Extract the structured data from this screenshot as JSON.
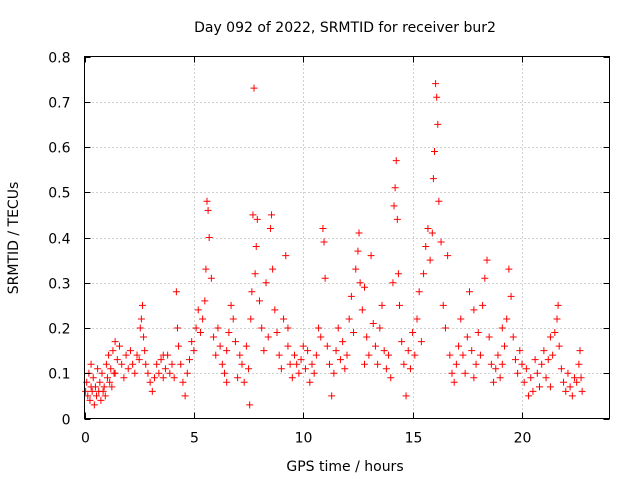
{
  "chart_data": {
    "type": "scatter",
    "title": "Day 092 of 2022, SRMTID for receiver bur2",
    "xlabel": "GPS time / hours",
    "ylabel": "SRMTID / TECUs",
    "xlim": [
      0,
      24
    ],
    "ylim": [
      0,
      0.8
    ],
    "xticks": [
      0,
      5,
      10,
      15,
      20
    ],
    "yticks": [
      0,
      0.1,
      0.2,
      0.3,
      0.4,
      0.5,
      0.6,
      0.7,
      0.8
    ],
    "xtick_labels": [
      "0",
      "5",
      "10",
      "15",
      "20"
    ],
    "ytick_labels": [
      "0",
      "0.1",
      "0.2",
      "0.3",
      "0.4",
      "0.5",
      "0.6",
      "0.7",
      "0.8"
    ],
    "grid": true,
    "marker": "+",
    "color": "#ff0000",
    "series": [
      {
        "name": "SRMTID",
        "points": [
          [
            0.05,
            0.06
          ],
          [
            0.1,
            0.08
          ],
          [
            0.15,
            0.05
          ],
          [
            0.2,
            0.1
          ],
          [
            0.25,
            0.04
          ],
          [
            0.3,
            0.07
          ],
          [
            0.35,
            0.06
          ],
          [
            0.4,
            0.09
          ],
          [
            0.45,
            0.03
          ],
          [
            0.5,
            0.07
          ],
          [
            0.55,
            0.05
          ],
          [
            0.6,
            0.11
          ],
          [
            0.65,
            0.06
          ],
          [
            0.7,
            0.08
          ],
          [
            0.75,
            0.04
          ],
          [
            0.8,
            0.1
          ],
          [
            0.85,
            0.06
          ],
          [
            0.9,
            0.07
          ],
          [
            0.95,
            0.05
          ],
          [
            1.0,
            0.12
          ],
          [
            1.05,
            0.09
          ],
          [
            1.1,
            0.14
          ],
          [
            1.15,
            0.08
          ],
          [
            1.2,
            0.11
          ],
          [
            1.25,
            0.07
          ],
          [
            1.3,
            0.15
          ],
          [
            1.35,
            0.1
          ],
          [
            1.4,
            0.17
          ],
          [
            1.5,
            0.13
          ],
          [
            1.6,
            0.16
          ],
          [
            1.7,
            0.12
          ],
          [
            1.8,
            0.09
          ],
          [
            1.9,
            0.14
          ],
          [
            2.0,
            0.11
          ],
          [
            2.1,
            0.15
          ],
          [
            2.2,
            0.12
          ],
          [
            2.3,
            0.1
          ],
          [
            2.4,
            0.14
          ],
          [
            2.5,
            0.13
          ],
          [
            2.55,
            0.2
          ],
          [
            2.6,
            0.22
          ],
          [
            2.65,
            0.25
          ],
          [
            2.7,
            0.18
          ],
          [
            2.75,
            0.15
          ],
          [
            2.8,
            0.12
          ],
          [
            2.9,
            0.1
          ],
          [
            3.0,
            0.08
          ],
          [
            3.1,
            0.06
          ],
          [
            3.2,
            0.09
          ],
          [
            3.3,
            0.12
          ],
          [
            3.4,
            0.1
          ],
          [
            3.5,
            0.13
          ],
          [
            3.6,
            0.09
          ],
          [
            3.7,
            0.11
          ],
          [
            3.8,
            0.14
          ],
          [
            3.9,
            0.1
          ],
          [
            4.0,
            0.12
          ],
          [
            4.1,
            0.09
          ],
          [
            4.2,
            0.28
          ],
          [
            4.25,
            0.2
          ],
          [
            4.3,
            0.16
          ],
          [
            4.4,
            0.12
          ],
          [
            4.5,
            0.08
          ],
          [
            4.6,
            0.05
          ],
          [
            4.7,
            0.1
          ],
          [
            4.8,
            0.13
          ],
          [
            4.9,
            0.17
          ],
          [
            5.0,
            0.15
          ],
          [
            5.1,
            0.2
          ],
          [
            5.2,
            0.24
          ],
          [
            5.3,
            0.19
          ],
          [
            5.4,
            0.22
          ],
          [
            5.5,
            0.26
          ],
          [
            5.55,
            0.33
          ],
          [
            5.6,
            0.48
          ],
          [
            5.65,
            0.46
          ],
          [
            5.7,
            0.4
          ],
          [
            5.8,
            0.31
          ],
          [
            5.9,
            0.18
          ],
          [
            6.0,
            0.14
          ],
          [
            6.1,
            0.2
          ],
          [
            6.2,
            0.16
          ],
          [
            6.3,
            0.12
          ],
          [
            6.4,
            0.1
          ],
          [
            6.5,
            0.15
          ],
          [
            6.6,
            0.19
          ],
          [
            6.7,
            0.25
          ],
          [
            6.8,
            0.22
          ],
          [
            6.9,
            0.17
          ],
          [
            7.0,
            0.09
          ],
          [
            7.1,
            0.14
          ],
          [
            7.2,
            0.12
          ],
          [
            7.3,
            0.08
          ],
          [
            7.4,
            0.16
          ],
          [
            7.5,
            0.11
          ],
          [
            7.55,
            0.03
          ],
          [
            7.6,
            0.22
          ],
          [
            7.65,
            0.28
          ],
          [
            7.7,
            0.45
          ],
          [
            7.75,
            0.73
          ],
          [
            7.8,
            0.32
          ],
          [
            7.85,
            0.38
          ],
          [
            7.9,
            0.44
          ],
          [
            8.0,
            0.26
          ],
          [
            8.1,
            0.2
          ],
          [
            8.2,
            0.15
          ],
          [
            8.3,
            0.3
          ],
          [
            8.4,
            0.18
          ],
          [
            8.5,
            0.42
          ],
          [
            8.55,
            0.45
          ],
          [
            8.6,
            0.33
          ],
          [
            8.7,
            0.24
          ],
          [
            8.8,
            0.19
          ],
          [
            8.9,
            0.14
          ],
          [
            9.0,
            0.11
          ],
          [
            9.1,
            0.22
          ],
          [
            9.2,
            0.36
          ],
          [
            9.3,
            0.16
          ],
          [
            9.4,
            0.12
          ],
          [
            9.5,
            0.09
          ],
          [
            9.6,
            0.14
          ],
          [
            9.7,
            0.12
          ],
          [
            9.8,
            0.1
          ],
          [
            9.9,
            0.13
          ],
          [
            10.0,
            0.16
          ],
          [
            10.1,
            0.11
          ],
          [
            10.2,
            0.15
          ],
          [
            10.3,
            0.08
          ],
          [
            10.4,
            0.12
          ],
          [
            10.5,
            0.1
          ],
          [
            10.6,
            0.14
          ],
          [
            10.7,
            0.2
          ],
          [
            10.8,
            0.18
          ],
          [
            10.9,
            0.42
          ],
          [
            10.95,
            0.39
          ],
          [
            11.0,
            0.31
          ],
          [
            11.1,
            0.16
          ],
          [
            11.2,
            0.12
          ],
          [
            11.3,
            0.05
          ],
          [
            11.4,
            0.1
          ],
          [
            11.5,
            0.15
          ],
          [
            11.6,
            0.2
          ],
          [
            11.7,
            0.13
          ],
          [
            11.8,
            0.17
          ],
          [
            11.9,
            0.11
          ],
          [
            12.0,
            0.14
          ],
          [
            12.1,
            0.22
          ],
          [
            12.2,
            0.27
          ],
          [
            12.3,
            0.19
          ],
          [
            12.4,
            0.33
          ],
          [
            12.5,
            0.37
          ],
          [
            12.55,
            0.41
          ],
          [
            12.6,
            0.3
          ],
          [
            12.7,
            0.24
          ],
          [
            12.8,
            0.29
          ],
          [
            12.9,
            0.18
          ],
          [
            13.0,
            0.14
          ],
          [
            13.1,
            0.36
          ],
          [
            13.2,
            0.21
          ],
          [
            13.3,
            0.16
          ],
          [
            13.4,
            0.12
          ],
          [
            13.5,
            0.2
          ],
          [
            13.6,
            0.25
          ],
          [
            13.7,
            0.15
          ],
          [
            13.8,
            0.11
          ],
          [
            13.9,
            0.14
          ],
          [
            14.0,
            0.09
          ],
          [
            14.1,
            0.3
          ],
          [
            14.15,
            0.47
          ],
          [
            14.2,
            0.51
          ],
          [
            14.25,
            0.57
          ],
          [
            14.3,
            0.44
          ],
          [
            14.35,
            0.32
          ],
          [
            14.4,
            0.25
          ],
          [
            14.5,
            0.17
          ],
          [
            14.6,
            0.12
          ],
          [
            14.7,
            0.05
          ],
          [
            14.8,
            0.15
          ],
          [
            14.9,
            0.11
          ],
          [
            15.0,
            0.19
          ],
          [
            15.1,
            0.14
          ],
          [
            15.2,
            0.22
          ],
          [
            15.3,
            0.28
          ],
          [
            15.4,
            0.17
          ],
          [
            15.5,
            0.32
          ],
          [
            15.6,
            0.38
          ],
          [
            15.7,
            0.42
          ],
          [
            15.8,
            0.35
          ],
          [
            15.9,
            0.41
          ],
          [
            15.95,
            0.53
          ],
          [
            16.0,
            0.59
          ],
          [
            16.05,
            0.74
          ],
          [
            16.1,
            0.71
          ],
          [
            16.15,
            0.65
          ],
          [
            16.2,
            0.48
          ],
          [
            16.3,
            0.39
          ],
          [
            16.4,
            0.25
          ],
          [
            16.5,
            0.2
          ],
          [
            16.6,
            0.36
          ],
          [
            16.7,
            0.14
          ],
          [
            16.8,
            0.1
          ],
          [
            16.9,
            0.08
          ],
          [
            17.0,
            0.12
          ],
          [
            17.1,
            0.16
          ],
          [
            17.2,
            0.22
          ],
          [
            17.3,
            0.14
          ],
          [
            17.4,
            0.1
          ],
          [
            17.5,
            0.18
          ],
          [
            17.6,
            0.28
          ],
          [
            17.7,
            0.15
          ],
          [
            17.8,
            0.09
          ],
          [
            17.9,
            0.12
          ],
          [
            18.0,
            0.19
          ],
          [
            18.1,
            0.14
          ],
          [
            18.2,
            0.25
          ],
          [
            18.3,
            0.31
          ],
          [
            18.4,
            0.35
          ],
          [
            18.5,
            0.18
          ],
          [
            18.6,
            0.12
          ],
          [
            18.7,
            0.08
          ],
          [
            18.8,
            0.11
          ],
          [
            18.9,
            0.14
          ],
          [
            19.0,
            0.09
          ],
          [
            19.1,
            0.12
          ],
          [
            19.2,
            0.16
          ],
          [
            19.3,
            0.22
          ],
          [
            19.4,
            0.33
          ],
          [
            19.5,
            0.27
          ],
          [
            19.6,
            0.18
          ],
          [
            19.7,
            0.13
          ],
          [
            19.8,
            0.1
          ],
          [
            19.9,
            0.15
          ],
          [
            20.0,
            0.12
          ],
          [
            20.1,
            0.08
          ],
          [
            20.2,
            0.11
          ],
          [
            20.3,
            0.05
          ],
          [
            20.4,
            0.09
          ],
          [
            20.5,
            0.06
          ],
          [
            20.6,
            0.13
          ],
          [
            20.7,
            0.1
          ],
          [
            20.8,
            0.07
          ],
          [
            20.9,
            0.12
          ],
          [
            21.0,
            0.15
          ],
          [
            21.1,
            0.09
          ],
          [
            21.2,
            0.13
          ],
          [
            21.3,
            0.18
          ],
          [
            21.4,
            0.14
          ],
          [
            21.5,
            0.19
          ],
          [
            21.6,
            0.22
          ],
          [
            21.65,
            0.25
          ],
          [
            21.7,
            0.16
          ],
          [
            21.8,
            0.11
          ],
          [
            21.9,
            0.08
          ],
          [
            22.0,
            0.06
          ],
          [
            22.1,
            0.1
          ],
          [
            22.2,
            0.07
          ],
          [
            22.3,
            0.05
          ],
          [
            22.4,
            0.09
          ],
          [
            22.5,
            0.08
          ],
          [
            22.6,
            0.12
          ],
          [
            22.65,
            0.15
          ],
          [
            22.7,
            0.09
          ],
          [
            22.75,
            0.06
          ],
          [
            0.3,
            0.12
          ],
          [
            1.4,
            0.1
          ],
          [
            3.6,
            0.14
          ],
          [
            6.5,
            0.08
          ],
          [
            9.3,
            0.2
          ],
          [
            12.8,
            0.12
          ],
          [
            17.8,
            0.24
          ],
          [
            21.3,
            0.07
          ],
          [
            19.1,
            0.2
          ]
        ]
      }
    ]
  }
}
